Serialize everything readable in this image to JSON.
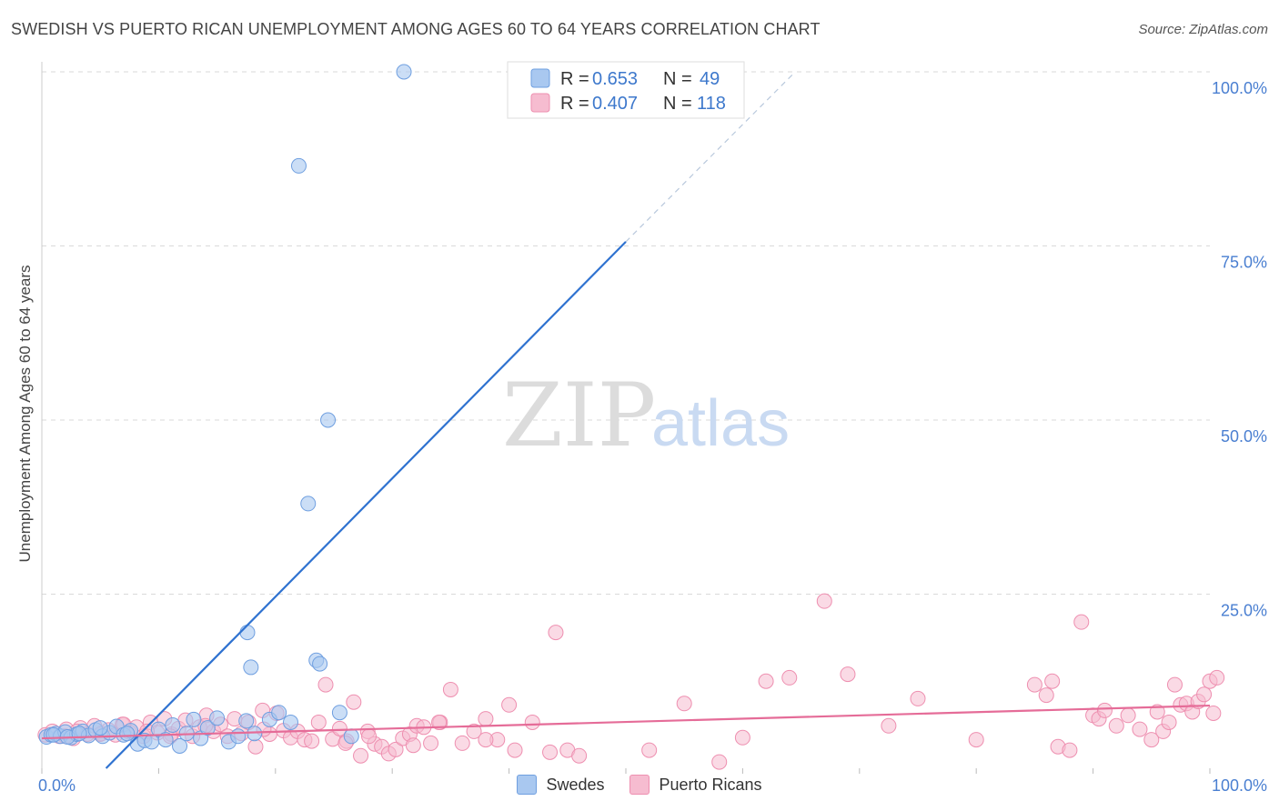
{
  "title": "SWEDISH VS PUERTO RICAN UNEMPLOYMENT AMONG AGES 60 TO 64 YEARS CORRELATION CHART",
  "source": "Source: ZipAtlas.com",
  "watermark": {
    "zip": "ZIP",
    "atlas": "atlas"
  },
  "colors": {
    "swedes_fill": "#a9c8f0",
    "swedes_stroke": "#6f9fe0",
    "swedes_line": "#2f72d0",
    "pr_fill": "#f6bcd0",
    "pr_stroke": "#ee8fb0",
    "pr_line": "#e56c98",
    "grid": "#d9d9d9",
    "axis_text": "#4a7fd1"
  },
  "legend": {
    "rows": [
      {
        "r_label": "R =",
        "r_value": "0.653",
        "n_label": "N =",
        "n_value": "49"
      },
      {
        "r_label": "R =",
        "r_value": "0.407",
        "n_label": "N =",
        "n_value": "118"
      }
    ]
  },
  "bottom_legend": {
    "swedes": "Swedes",
    "puerto_ricans": "Puerto Ricans"
  },
  "chart_data": {
    "type": "scatter",
    "title": "SWEDISH VS PUERTO RICAN UNEMPLOYMENT AMONG AGES 60 TO 64 YEARS CORRELATION CHART",
    "xlabel": "",
    "ylabel": "Unemployment Among Ages 60 to 64 years",
    "xlim": [
      0,
      100
    ],
    "ylim": [
      0,
      100
    ],
    "x_tick_labels": [
      "0.0%",
      "100.0%"
    ],
    "y_ticks": [
      25,
      50,
      75,
      100
    ],
    "y_tick_labels": [
      "25.0%",
      "50.0%",
      "75.0%",
      "100.0%"
    ],
    "grid": true,
    "series": [
      {
        "name": "Swedes",
        "R": 0.653,
        "N": 49,
        "trend": {
          "x0": 5.5,
          "y0": 0,
          "x1": 50,
          "y1": 75.6,
          "dash_to_x": 64.5,
          "dash_to_y": 100
        },
        "points": [
          [
            0.4,
            4.5
          ],
          [
            0.8,
            4.8
          ],
          [
            1.2,
            5.0
          ],
          [
            1.6,
            4.6
          ],
          [
            2.0,
            5.2
          ],
          [
            2.5,
            4.4
          ],
          [
            3.0,
            4.9
          ],
          [
            3.5,
            5.3
          ],
          [
            4.0,
            4.7
          ],
          [
            4.6,
            5.5
          ],
          [
            5.2,
            4.6
          ],
          [
            5.8,
            5.1
          ],
          [
            6.4,
            6.0
          ],
          [
            7.0,
            4.8
          ],
          [
            7.6,
            5.4
          ],
          [
            8.2,
            3.5
          ],
          [
            8.8,
            4.0
          ],
          [
            9.4,
            3.8
          ],
          [
            10.0,
            5.6
          ],
          [
            10.6,
            4.1
          ],
          [
            11.2,
            6.2
          ],
          [
            11.8,
            3.2
          ],
          [
            12.4,
            5.0
          ],
          [
            13.0,
            7.0
          ],
          [
            13.6,
            4.3
          ],
          [
            14.2,
            5.8
          ],
          [
            15.0,
            7.2
          ],
          [
            16.0,
            3.8
          ],
          [
            16.8,
            4.6
          ],
          [
            17.5,
            6.8
          ],
          [
            18.2,
            5.0
          ],
          [
            19.5,
            7.0
          ],
          [
            20.3,
            8.0
          ],
          [
            21.3,
            6.6
          ],
          [
            22.0,
            86.5
          ],
          [
            22.8,
            38.0
          ],
          [
            23.5,
            15.5
          ],
          [
            23.8,
            15.0
          ],
          [
            24.5,
            50.0
          ],
          [
            25.5,
            8.0
          ],
          [
            26.5,
            4.6
          ],
          [
            31.0,
            100.0
          ],
          [
            17.6,
            19.5
          ],
          [
            17.9,
            14.5
          ],
          [
            1.0,
            4.8
          ],
          [
            2.2,
            4.5
          ],
          [
            3.2,
            5.0
          ],
          [
            5.0,
            5.8
          ],
          [
            7.3,
            5.0
          ]
        ]
      },
      {
        "name": "Puerto Ricans",
        "R": 0.407,
        "N": 118,
        "trend": {
          "x0": 0,
          "y0": 4.3,
          "x1": 100,
          "y1": 9.0
        },
        "points": [
          [
            0.3,
            4.8
          ],
          [
            0.9,
            5.3
          ],
          [
            1.5,
            4.6
          ],
          [
            2.1,
            5.6
          ],
          [
            2.7,
            4.3
          ],
          [
            3.3,
            5.8
          ],
          [
            3.9,
            4.9
          ],
          [
            4.5,
            6.1
          ],
          [
            5.1,
            5.0
          ],
          [
            5.7,
            5.5
          ],
          [
            6.3,
            4.8
          ],
          [
            6.9,
            6.3
          ],
          [
            7.5,
            5.2
          ],
          [
            8.1,
            5.9
          ],
          [
            8.7,
            4.6
          ],
          [
            9.3,
            6.6
          ],
          [
            9.9,
            5.1
          ],
          [
            10.5,
            7.1
          ],
          [
            11.1,
            4.9
          ],
          [
            11.7,
            5.7
          ],
          [
            12.3,
            6.9
          ],
          [
            12.9,
            4.6
          ],
          [
            13.5,
            5.9
          ],
          [
            14.1,
            7.6
          ],
          [
            14.7,
            5.3
          ],
          [
            15.3,
            6.3
          ],
          [
            15.9,
            4.6
          ],
          [
            16.5,
            7.1
          ],
          [
            17.1,
            5.0
          ],
          [
            17.7,
            6.6
          ],
          [
            18.3,
            3.1
          ],
          [
            18.9,
            8.3
          ],
          [
            19.5,
            4.9
          ],
          [
            20.1,
            7.9
          ],
          [
            20.7,
            5.4
          ],
          [
            21.3,
            4.4
          ],
          [
            21.9,
            5.3
          ],
          [
            22.5,
            4.1
          ],
          [
            23.1,
            3.9
          ],
          [
            23.7,
            6.6
          ],
          [
            24.3,
            12.0
          ],
          [
            24.9,
            4.2
          ],
          [
            25.5,
            5.7
          ],
          [
            26.1,
            3.9
          ],
          [
            26.7,
            9.5
          ],
          [
            27.3,
            1.8
          ],
          [
            27.9,
            5.3
          ],
          [
            28.5,
            3.5
          ],
          [
            29.1,
            3.1
          ],
          [
            29.7,
            2.1
          ],
          [
            30.3,
            2.7
          ],
          [
            30.9,
            4.3
          ],
          [
            31.5,
            4.9
          ],
          [
            32.1,
            6.1
          ],
          [
            32.7,
            5.9
          ],
          [
            33.3,
            3.6
          ],
          [
            34.1,
            6.6
          ],
          [
            35.0,
            11.3
          ],
          [
            36.0,
            3.6
          ],
          [
            37.0,
            5.3
          ],
          [
            38.0,
            7.1
          ],
          [
            39.0,
            4.1
          ],
          [
            40.0,
            9.1
          ],
          [
            40.5,
            2.6
          ],
          [
            42.0,
            6.6
          ],
          [
            43.5,
            2.3
          ],
          [
            45.0,
            2.6
          ],
          [
            46.0,
            1.8
          ],
          [
            52.0,
            2.6
          ],
          [
            55.0,
            9.3
          ],
          [
            58.0,
            0.9
          ],
          [
            60.0,
            4.4
          ],
          [
            62.0,
            12.5
          ],
          [
            64.0,
            13.0
          ],
          [
            67.0,
            24.0
          ],
          [
            69.0,
            13.5
          ],
          [
            72.5,
            6.1
          ],
          [
            75.0,
            10.0
          ],
          [
            80.0,
            4.1
          ],
          [
            85.0,
            12.0
          ],
          [
            86.0,
            10.5
          ],
          [
            86.5,
            12.5
          ],
          [
            87.0,
            3.1
          ],
          [
            88.0,
            2.6
          ],
          [
            89.0,
            21.0
          ],
          [
            90.0,
            7.6
          ],
          [
            90.5,
            7.1
          ],
          [
            91.0,
            8.3
          ],
          [
            92.0,
            6.1
          ],
          [
            93.0,
            7.6
          ],
          [
            94.0,
            5.6
          ],
          [
            95.0,
            4.1
          ],
          [
            95.5,
            8.1
          ],
          [
            96.0,
            5.3
          ],
          [
            96.5,
            6.6
          ],
          [
            97.0,
            12.0
          ],
          [
            97.5,
            9.1
          ],
          [
            98.0,
            9.3
          ],
          [
            98.5,
            8.1
          ],
          [
            99.0,
            9.6
          ],
          [
            99.5,
            10.6
          ],
          [
            100.0,
            12.5
          ],
          [
            100.3,
            7.9
          ],
          [
            100.6,
            13.0
          ],
          [
            44.0,
            19.5
          ],
          [
            38.0,
            4.1
          ],
          [
            34.0,
            6.6
          ],
          [
            31.8,
            3.3
          ],
          [
            28.0,
            4.6
          ],
          [
            26.0,
            3.6
          ],
          [
            19.0,
            5.6
          ],
          [
            14.0,
            6.1
          ],
          [
            11.0,
            4.6
          ],
          [
            9.0,
            5.3
          ],
          [
            7.0,
            6.3
          ],
          [
            5.0,
            4.9
          ],
          [
            3.0,
            5.3
          ],
          [
            2.0,
            4.6
          ]
        ]
      }
    ]
  }
}
